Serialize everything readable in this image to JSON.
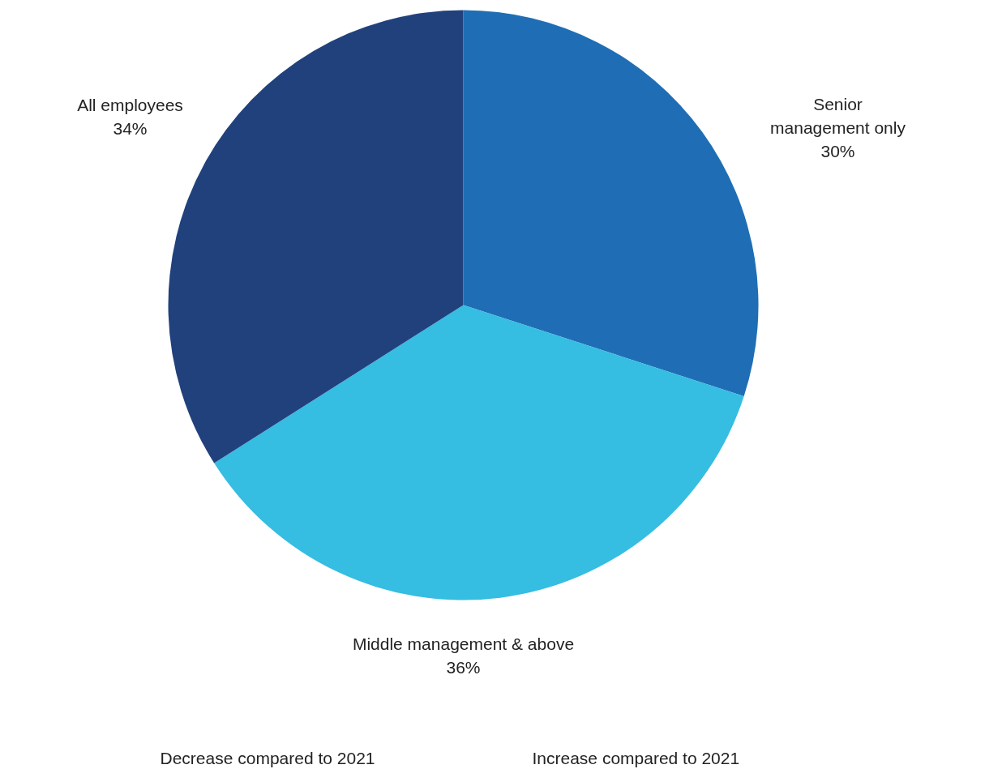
{
  "chart_data": {
    "type": "pie",
    "categories": [
      "Senior\nmanagement only",
      "Middle management & above",
      "All employees"
    ],
    "values": [
      30,
      36,
      34
    ],
    "colors": [
      "#1f6eb5",
      "#35bde2",
      "#21417d"
    ],
    "value_labels": [
      "30%",
      "36%",
      "34%"
    ],
    "annotations": [
      "Decrease compared to 2021",
      "Increase compared to 2021"
    ]
  }
}
